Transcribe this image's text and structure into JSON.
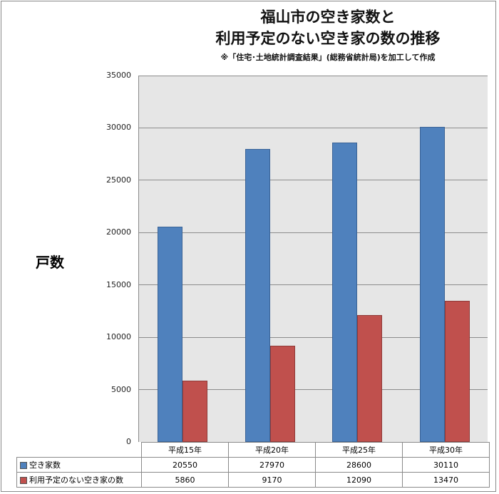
{
  "chart_data": {
    "type": "bar",
    "title": "福山市の空き家数と利用予定のない空き家の数の推移",
    "title_lines": [
      "福山市の空き家数と",
      "利用予定のない空き家の数の推移"
    ],
    "subtitle": "※「住宅･土地統計調査結果」(総務省統計局)を加工して作成",
    "xlabel": "",
    "ylabel": "戸数",
    "categories": [
      "平成15年",
      "平成20年",
      "平成25年",
      "平成30年"
    ],
    "series": [
      {
        "name": "空き家数",
        "color": "#4f81bd",
        "values": [
          20550,
          27970,
          28600,
          30110
        ]
      },
      {
        "name": "利用予定のない空き家の数",
        "color": "#c0504d",
        "values": [
          5860,
          9170,
          12090,
          13470
        ]
      }
    ],
    "ylim": [
      0,
      35000
    ],
    "yticks": [
      "35000",
      "30000",
      "25000",
      "20000",
      "15000",
      "10000",
      "5000",
      "0"
    ],
    "grid": true,
    "legend_position": "data-table"
  },
  "table": {
    "headers": [
      "平成15年",
      "平成20年",
      "平成25年",
      "平成30年"
    ],
    "rows": [
      {
        "label": "空き家数",
        "values": [
          "20550",
          "27970",
          "28600",
          "30110"
        ]
      },
      {
        "label": "利用予定のない空き家の数",
        "values": [
          "5860",
          "9170",
          "12090",
          "13470"
        ]
      }
    ]
  }
}
